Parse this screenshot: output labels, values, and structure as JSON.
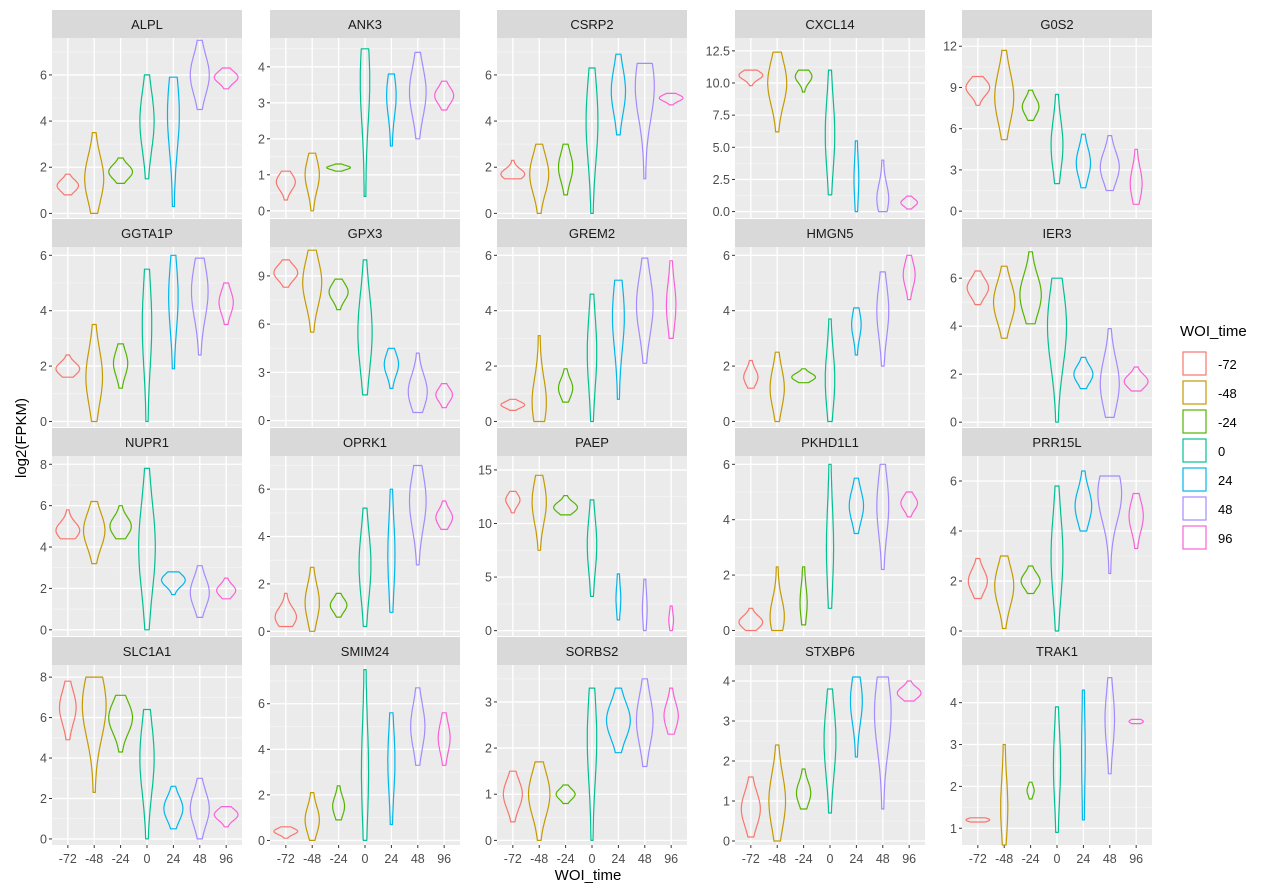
{
  "chart_data": {
    "type": "violin",
    "xlabel": "WOI_time",
    "ylabel": "log2(FPKM)",
    "x_categories": [
      "-72",
      "-48",
      "-24",
      "0",
      "24",
      "48",
      "96"
    ],
    "legend": {
      "title": "WOI_time",
      "placement": "right",
      "entries": [
        {
          "label": "-72",
          "color": "#F8766D"
        },
        {
          "label": "-48",
          "color": "#C49A00"
        },
        {
          "label": "-24",
          "color": "#53B400"
        },
        {
          "label": "0",
          "color": "#00C094"
        },
        {
          "label": "24",
          "color": "#00B6EB"
        },
        {
          "label": "48",
          "color": "#A58AFF"
        },
        {
          "label": "96",
          "color": "#FB61D7"
        }
      ]
    },
    "panels": [
      {
        "title": "ALPL",
        "ylim": [
          -0.2,
          7.6
        ],
        "yticks": [
          0,
          2,
          4,
          6
        ],
        "violins": [
          [
            0.8,
            1.7,
            1.2,
            0.9
          ],
          [
            0.0,
            3.5,
            1.5,
            0.8
          ],
          [
            1.3,
            2.4,
            1.8,
            1.0
          ],
          [
            1.5,
            6.0,
            4.0,
            0.6
          ],
          [
            0.3,
            5.9,
            4.3,
            0.5
          ],
          [
            4.5,
            7.5,
            6.0,
            0.8
          ],
          [
            5.4,
            6.3,
            5.9,
            1.0
          ]
        ]
      },
      {
        "title": "ANK3",
        "ylim": [
          -0.2,
          4.8
        ],
        "yticks": [
          0,
          1,
          2,
          3,
          4
        ],
        "violins": [
          [
            0.3,
            1.1,
            0.8,
            0.8
          ],
          [
            0.0,
            1.6,
            1.0,
            0.6
          ],
          [
            1.1,
            1.3,
            1.2,
            1.0
          ],
          [
            0.4,
            4.5,
            3.6,
            0.4
          ],
          [
            1.8,
            3.8,
            3.2,
            0.4
          ],
          [
            2.0,
            4.4,
            3.3,
            0.7
          ],
          [
            2.8,
            3.6,
            3.2,
            0.8
          ]
        ]
      },
      {
        "title": "CSRP2",
        "ylim": [
          -0.2,
          7.6
        ],
        "yticks": [
          0,
          2,
          4,
          6
        ],
        "violins": [
          [
            1.5,
            2.3,
            1.7,
            1.0
          ],
          [
            0.0,
            3.0,
            1.7,
            0.8
          ],
          [
            0.8,
            3.0,
            2.0,
            0.6
          ],
          [
            0.0,
            6.3,
            4.0,
            0.5
          ],
          [
            3.4,
            6.9,
            5.3,
            0.6
          ],
          [
            1.5,
            6.5,
            5.5,
            0.8
          ],
          [
            4.7,
            5.2,
            5.0,
            1.0
          ]
        ]
      },
      {
        "title": "CXCL14",
        "ylim": [
          -0.5,
          13.5
        ],
        "yticks": [
          0,
          2.5,
          5,
          7.5,
          10,
          12.5
        ],
        "ytick_labels": [
          "0.0",
          "2.5",
          "5.0",
          "7.5",
          "10.0",
          "12.5"
        ],
        "violins": [
          [
            9.8,
            11.0,
            10.6,
            1.0
          ],
          [
            6.2,
            12.4,
            10.0,
            0.8
          ],
          [
            9.3,
            11.0,
            10.5,
            0.7
          ],
          [
            1.3,
            11.0,
            6.0,
            0.4
          ],
          [
            0.0,
            5.5,
            2.5,
            0.2
          ],
          [
            0.0,
            4.0,
            1.0,
            0.5
          ],
          [
            0.2,
            1.2,
            0.7,
            0.7
          ]
        ]
      },
      {
        "title": "G0S2",
        "ylim": [
          -0.5,
          12.6
        ],
        "yticks": [
          0,
          3,
          6,
          9,
          12
        ],
        "violins": [
          [
            7.7,
            9.8,
            9.0,
            1.0
          ],
          [
            5.2,
            11.7,
            8.3,
            0.8
          ],
          [
            6.6,
            8.8,
            7.6,
            0.7
          ],
          [
            2.0,
            8.5,
            4.8,
            0.5
          ],
          [
            1.7,
            5.6,
            3.5,
            0.6
          ],
          [
            1.5,
            5.5,
            3.2,
            0.8
          ],
          [
            0.5,
            4.5,
            2.0,
            0.5
          ]
        ]
      },
      {
        "title": "GGTA1P",
        "ylim": [
          -0.2,
          6.3
        ],
        "yticks": [
          0,
          2,
          4,
          6
        ],
        "violins": [
          [
            1.6,
            2.4,
            1.9,
            1.0
          ],
          [
            0.0,
            3.5,
            1.6,
            0.7
          ],
          [
            1.2,
            2.8,
            2.1,
            0.6
          ],
          [
            0.0,
            5.5,
            3.5,
            0.4
          ],
          [
            1.9,
            6.0,
            4.5,
            0.4
          ],
          [
            2.4,
            5.9,
            4.7,
            0.7
          ],
          [
            3.5,
            5.0,
            4.3,
            0.6
          ]
        ]
      },
      {
        "title": "GPX3",
        "ylim": [
          -0.4,
          10.8
        ],
        "yticks": [
          0,
          3,
          6,
          9
        ],
        "violins": [
          [
            8.3,
            10.0,
            9.2,
            1.0
          ],
          [
            5.5,
            10.6,
            8.6,
            0.8
          ],
          [
            6.9,
            8.8,
            8.0,
            0.8
          ],
          [
            1.6,
            10.0,
            5.5,
            0.6
          ],
          [
            2.0,
            4.5,
            3.5,
            0.6
          ],
          [
            0.5,
            4.2,
            1.8,
            0.8
          ],
          [
            0.8,
            2.3,
            1.6,
            0.7
          ]
        ]
      },
      {
        "title": "GREM2",
        "ylim": [
          -0.2,
          6.3
        ],
        "yticks": [
          0,
          2,
          4,
          6
        ],
        "violins": [
          [
            0.4,
            0.8,
            0.6,
            1.0
          ],
          [
            0.0,
            3.1,
            0.7,
            0.6
          ],
          [
            0.7,
            1.9,
            1.2,
            0.6
          ],
          [
            0.0,
            4.6,
            2.5,
            0.4
          ],
          [
            0.8,
            5.1,
            3.8,
            0.5
          ],
          [
            2.1,
            5.9,
            4.2,
            0.7
          ],
          [
            3.0,
            5.8,
            4.2,
            0.4
          ]
        ]
      },
      {
        "title": "HMGN5",
        "ylim": [
          -0.2,
          6.3
        ],
        "yticks": [
          0,
          2,
          4,
          6
        ],
        "violins": [
          [
            1.2,
            2.2,
            1.6,
            0.6
          ],
          [
            0.0,
            2.5,
            1.2,
            0.6
          ],
          [
            1.4,
            1.9,
            1.6,
            1.0
          ],
          [
            0.0,
            3.7,
            1.5,
            0.4
          ],
          [
            2.4,
            4.1,
            3.5,
            0.4
          ],
          [
            2.0,
            5.4,
            4.0,
            0.5
          ],
          [
            4.4,
            6.0,
            5.3,
            0.5
          ]
        ]
      },
      {
        "title": "IER3",
        "ylim": [
          -0.2,
          7.3
        ],
        "yticks": [
          0,
          2,
          4,
          6
        ],
        "violins": [
          [
            4.9,
            6.3,
            5.6,
            0.9
          ],
          [
            3.5,
            6.5,
            5.0,
            0.9
          ],
          [
            4.1,
            7.1,
            5.3,
            0.9
          ],
          [
            0.0,
            6.0,
            4.0,
            0.8
          ],
          [
            1.4,
            2.7,
            2.0,
            0.8
          ],
          [
            0.2,
            3.9,
            1.6,
            0.8
          ],
          [
            1.3,
            2.3,
            1.7,
            1.0
          ]
        ]
      },
      {
        "title": "NUPR1",
        "ylim": [
          -0.3,
          8.4
        ],
        "yticks": [
          0,
          2,
          4,
          6,
          8
        ],
        "violins": [
          [
            4.4,
            5.8,
            4.8,
            1.0
          ],
          [
            3.2,
            6.2,
            4.8,
            0.9
          ],
          [
            4.4,
            6.0,
            5.0,
            0.9
          ],
          [
            0.0,
            7.8,
            4.0,
            0.7
          ],
          [
            1.7,
            2.8,
            2.4,
            1.0
          ],
          [
            0.6,
            3.1,
            1.8,
            0.8
          ],
          [
            1.5,
            2.5,
            1.9,
            0.8
          ]
        ]
      },
      {
        "title": "OPRK1",
        "ylim": [
          -0.2,
          7.4
        ],
        "yticks": [
          0,
          2,
          4,
          6
        ],
        "violins": [
          [
            0.2,
            1.6,
            0.6,
            0.9
          ],
          [
            0.0,
            2.7,
            1.2,
            0.6
          ],
          [
            0.6,
            1.6,
            1.1,
            0.7
          ],
          [
            0.2,
            5.2,
            2.8,
            0.5
          ],
          [
            0.8,
            6.0,
            3.2,
            0.3
          ],
          [
            2.8,
            7.0,
            5.5,
            0.7
          ],
          [
            4.3,
            5.5,
            4.8,
            0.7
          ]
        ]
      },
      {
        "title": "PAEP",
        "ylim": [
          -0.5,
          16.3
        ],
        "yticks": [
          0,
          5,
          10,
          15
        ],
        "violins": [
          [
            11.0,
            13.0,
            12.2,
            0.6
          ],
          [
            7.5,
            14.5,
            12.0,
            0.6
          ],
          [
            10.8,
            12.6,
            11.5,
            1.0
          ],
          [
            3.2,
            12.2,
            8.0,
            0.4
          ],
          [
            1.0,
            5.3,
            3.0,
            0.2
          ],
          [
            0.0,
            4.8,
            2.0,
            0.2
          ],
          [
            0.0,
            2.3,
            1.0,
            0.2
          ]
        ]
      },
      {
        "title": "PKHD1L1",
        "ylim": [
          -0.2,
          6.3
        ],
        "yticks": [
          0,
          2,
          4,
          6
        ],
        "violins": [
          [
            0.0,
            0.8,
            0.3,
            1.0
          ],
          [
            0.0,
            2.3,
            0.5,
            0.6
          ],
          [
            0.2,
            2.3,
            1.0,
            0.3
          ],
          [
            0.8,
            6.0,
            3.0,
            0.3
          ],
          [
            3.5,
            5.5,
            4.5,
            0.6
          ],
          [
            2.2,
            6.0,
            4.5,
            0.5
          ],
          [
            4.1,
            5.0,
            4.6,
            0.7
          ]
        ]
      },
      {
        "title": "PRR15L",
        "ylim": [
          -0.2,
          7.0
        ],
        "yticks": [
          0,
          2,
          4,
          6
        ],
        "violins": [
          [
            1.3,
            2.9,
            2.0,
            0.8
          ],
          [
            0.1,
            3.0,
            1.8,
            0.8
          ],
          [
            1.5,
            2.6,
            2.0,
            0.8
          ],
          [
            0.0,
            5.8,
            3.0,
            0.5
          ],
          [
            4.0,
            6.4,
            5.0,
            0.7
          ],
          [
            2.3,
            6.2,
            5.5,
            1.0
          ],
          [
            3.3,
            5.5,
            4.6,
            0.6
          ]
        ]
      },
      {
        "title": "SLC1A1",
        "ylim": [
          -0.3,
          8.6
        ],
        "yticks": [
          0,
          2,
          4,
          6,
          8
        ],
        "violins": [
          [
            4.9,
            7.8,
            6.5,
            0.7
          ],
          [
            2.3,
            8.0,
            6.6,
            1.0
          ],
          [
            4.3,
            7.1,
            6.0,
            1.0
          ],
          [
            0.0,
            6.4,
            4.0,
            0.6
          ],
          [
            0.5,
            2.6,
            1.5,
            0.8
          ],
          [
            0.0,
            3.0,
            1.5,
            0.8
          ],
          [
            0.6,
            1.6,
            1.2,
            1.0
          ]
        ]
      },
      {
        "title": "SMIM24",
        "ylim": [
          -0.2,
          7.7
        ],
        "yticks": [
          0,
          2,
          4,
          6
        ],
        "violins": [
          [
            0.1,
            0.6,
            0.4,
            1.0
          ],
          [
            0.0,
            2.1,
            0.9,
            0.6
          ],
          [
            0.9,
            2.4,
            1.5,
            0.5
          ],
          [
            0.0,
            7.5,
            3.0,
            0.3
          ],
          [
            0.7,
            5.6,
            3.5,
            0.3
          ],
          [
            3.3,
            6.7,
            5.0,
            0.6
          ],
          [
            3.3,
            5.6,
            4.5,
            0.5
          ]
        ]
      },
      {
        "title": "SORBS2",
        "ylim": [
          -0.1,
          3.8
        ],
        "yticks": [
          0,
          1,
          2,
          3
        ],
        "violins": [
          [
            0.4,
            1.5,
            1.0,
            0.8
          ],
          [
            0.0,
            1.7,
            1.0,
            0.9
          ],
          [
            0.8,
            1.2,
            1.0,
            0.8
          ],
          [
            0.0,
            3.3,
            2.2,
            0.4
          ],
          [
            1.9,
            3.3,
            2.6,
            1.0
          ],
          [
            1.6,
            3.5,
            2.6,
            0.7
          ],
          [
            2.3,
            3.3,
            2.7,
            0.6
          ]
        ]
      },
      {
        "title": "STXBP6",
        "ylim": [
          -0.1,
          4.4
        ],
        "yticks": [
          0,
          1,
          2,
          3,
          4
        ],
        "violins": [
          [
            0.1,
            1.6,
            0.8,
            0.8
          ],
          [
            0.0,
            2.4,
            1.0,
            0.7
          ],
          [
            0.8,
            1.8,
            1.2,
            0.6
          ],
          [
            0.7,
            3.8,
            2.5,
            0.5
          ],
          [
            2.1,
            4.1,
            3.5,
            0.5
          ],
          [
            0.8,
            4.1,
            3.2,
            0.7
          ],
          [
            3.5,
            4.0,
            3.7,
            1.0
          ]
        ]
      },
      {
        "title": "TRAK1",
        "ylim": [
          0.6,
          4.9
        ],
        "yticks": [
          1,
          2,
          3,
          4
        ],
        "violins": [
          [
            1.15,
            1.25,
            1.2,
            1.0
          ],
          [
            0.6,
            3.0,
            1.5,
            0.3
          ],
          [
            1.7,
            2.1,
            1.9,
            0.3
          ],
          [
            0.9,
            3.9,
            2.5,
            0.3
          ],
          [
            1.2,
            4.3,
            2.8,
            0.15
          ],
          [
            2.3,
            4.6,
            3.6,
            0.4
          ],
          [
            3.5,
            3.6,
            3.55,
            0.6
          ]
        ]
      }
    ]
  }
}
